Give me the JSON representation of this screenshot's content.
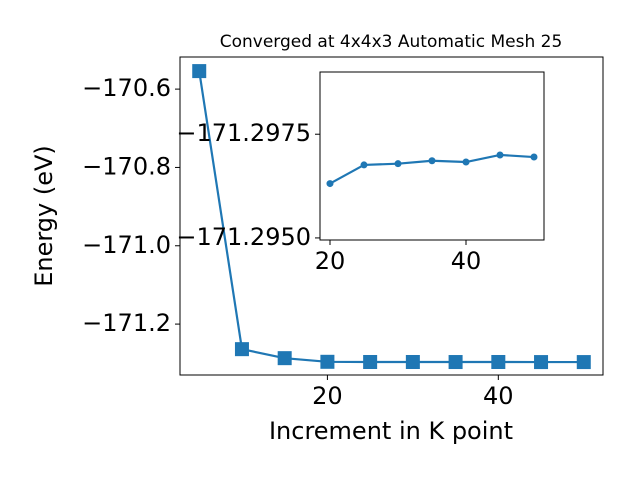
{
  "chart_data": [
    {
      "type": "line",
      "title": "Converged at 4x4x3 Automatic Mesh 25",
      "x_label": "Increment in K point",
      "y_label": "Energy (eV)",
      "x": [
        5,
        10,
        15,
        20,
        25,
        30,
        35,
        40,
        45,
        50
      ],
      "series": [
        {
          "color": "#1f77b4",
          "marker": "square",
          "values": [
            -170.554,
            -171.264,
            -171.287,
            -171.2963,
            -171.2968,
            -171.2968,
            -171.2969,
            -171.2968,
            -171.297,
            -171.297
          ]
        }
      ],
      "xlim": [
        2.75,
        52.25
      ],
      "ylim": [
        -171.33,
        -170.518
      ],
      "xticks": [
        20,
        40
      ],
      "yticks": [
        {
          "value": -170.6,
          "label": "−170.6"
        },
        {
          "value": -170.8,
          "label": "−170.8"
        },
        {
          "value": -171.0,
          "label": "−171.0"
        },
        {
          "value": -171.2,
          "label": "−171.2"
        }
      ]
    },
    {
      "type": "line",
      "x": [
        20,
        25,
        30,
        35,
        40,
        45,
        50
      ],
      "series": [
        {
          "color": "#1f77b4",
          "marker": "circle",
          "values": [
            -171.29631,
            -171.29676,
            -171.29679,
            -171.29686,
            -171.29683,
            -171.297,
            -171.29695
          ]
        }
      ],
      "xlim": [
        18.53,
        51.47
      ],
      "ylim": [
        -171.29495,
        -171.299
      ],
      "xticks": [
        20,
        40
      ],
      "yticks": [
        {
          "value": -171.2975,
          "label": "−171.2975"
        },
        {
          "value": -171.295,
          "label": "−171.2950"
        }
      ]
    }
  ]
}
